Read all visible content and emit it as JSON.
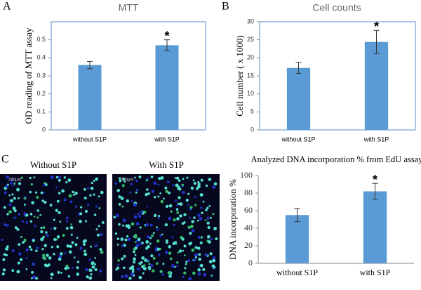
{
  "figure": {
    "panel_labels": [
      "A",
      "B",
      "C"
    ],
    "images": [
      {
        "title": "Without S1P",
        "scale": "200μm"
      },
      {
        "title": "With S1P",
        "scale": "200μm"
      }
    ]
  },
  "chart_data": [
    {
      "type": "bar",
      "title": "MTT",
      "y_label": "OD reading of MTT assay",
      "categories": [
        "without S1P",
        "with S1P"
      ],
      "values": [
        0.36,
        0.47
      ],
      "errors": [
        0.02,
        0.03
      ],
      "significance": [
        null,
        "*"
      ],
      "color": "#5b9bd5",
      "ylim": [
        0,
        0.6
      ],
      "yticks": [
        0,
        0.1,
        0.2,
        0.3,
        0.4,
        0.5
      ],
      "frame": "box"
    },
    {
      "type": "bar",
      "title": "Cell counts",
      "y_label": "Cell number ( x 1000)",
      "categories": [
        "without S1P",
        "with S1P"
      ],
      "values": [
        17.2,
        24.4
      ],
      "errors": [
        1.5,
        3.2
      ],
      "significance": [
        null,
        "*"
      ],
      "color": "#5b9bd5",
      "ylim": [
        0,
        30
      ],
      "yticks": [
        0,
        5,
        10,
        15,
        20,
        25,
        30
      ],
      "frame": "box"
    },
    {
      "type": "bar",
      "title": "Analyzed DNA incorporation % from EdU assay",
      "y_label": "DNA incorporation %",
      "categories": [
        "without S1P",
        "with S1P"
      ],
      "values": [
        55,
        82
      ],
      "errors": [
        7.5,
        9
      ],
      "significance": [
        null,
        "*"
      ],
      "color": "#5b9bd5",
      "ylim": [
        0,
        100
      ],
      "yticks": [
        0,
        20,
        40,
        60,
        80,
        100
      ],
      "frame": "axes"
    }
  ]
}
